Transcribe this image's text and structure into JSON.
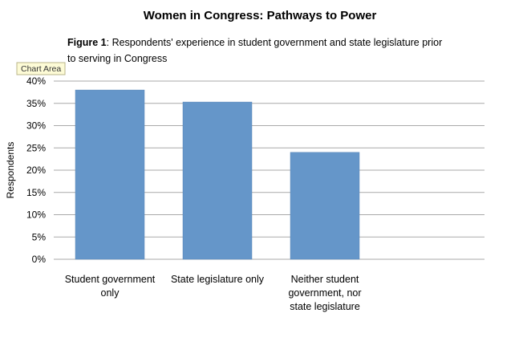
{
  "chart_data": {
    "type": "bar",
    "title": "Women in Congress: Pathways to Power",
    "subtitle_bold": "Figure 1",
    "subtitle_line1": ": Respondents' experience in student government and state legislature prior",
    "subtitle_line2": "to serving in Congress",
    "ylabel": "Respondents",
    "xlabel": "",
    "ylim": [
      0,
      40
    ],
    "yticks": [
      "0%",
      "5%",
      "10%",
      "15%",
      "20%",
      "25%",
      "30%",
      "35%",
      "40%"
    ],
    "ytick_values": [
      0,
      5,
      10,
      15,
      20,
      25,
      30,
      35,
      40
    ],
    "categories": [
      [
        "Student government",
        "only"
      ],
      [
        "State legislature only"
      ],
      [
        "Neither student",
        "government, nor",
        "state legislature"
      ]
    ],
    "values": [
      38,
      35.3,
      24
    ],
    "units": "%",
    "grid": true,
    "legend": "none",
    "bar_color": "#6596c9"
  },
  "tooltip": {
    "label": "Chart Area"
  }
}
